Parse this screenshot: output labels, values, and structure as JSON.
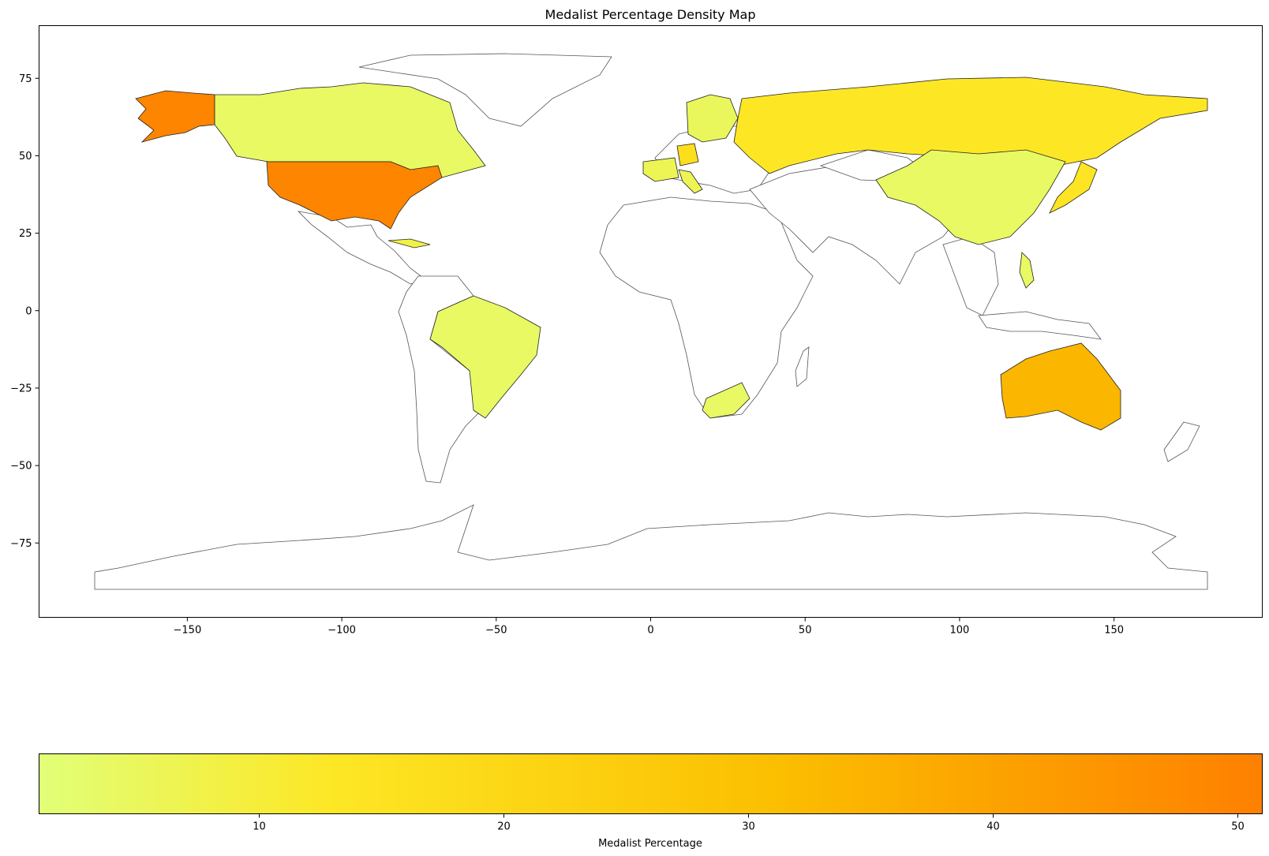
{
  "title": "Medalist Percentage Density Map",
  "colorbar": {
    "label": "Medalist Percentage",
    "range": [
      1,
      51
    ],
    "ticks": [
      10,
      20,
      30,
      40,
      50
    ],
    "tick_labels": [
      "10",
      "20",
      "30",
      "40",
      "50"
    ],
    "colormap": [
      "#e1ff78",
      "#fde725",
      "#fbbf00",
      "#fe8000"
    ]
  },
  "chart_data": {
    "type": "choropleth",
    "title": "Medalist Percentage Density Map",
    "xlim": [
      -198,
      198
    ],
    "ylim": [
      -99,
      92
    ],
    "x_ticks": [
      -150,
      -100,
      -50,
      0,
      50,
      100,
      150
    ],
    "x_tick_labels": [
      "−150",
      "−100",
      "−50",
      "0",
      "50",
      "100",
      "150"
    ],
    "y_ticks": [
      75,
      50,
      25,
      0,
      -25,
      -50,
      -75
    ],
    "y_tick_labels": [
      "75",
      "50",
      "25",
      "0",
      "−25",
      "−50",
      "−75"
    ],
    "no_data_color": "#ffffff",
    "regions": [
      {
        "name": "United States",
        "value": 49.5
      },
      {
        "name": "Alaska",
        "value": 49.5
      },
      {
        "name": "Australia",
        "value": 34
      },
      {
        "name": "Russia",
        "value": 13
      },
      {
        "name": "Germany",
        "value": 17
      },
      {
        "name": "Japan",
        "value": 14
      },
      {
        "name": "Canada",
        "value": 4
      },
      {
        "name": "China",
        "value": 4
      },
      {
        "name": "Brazil",
        "value": 4
      },
      {
        "name": "South Africa",
        "value": 4
      },
      {
        "name": "Sweden",
        "value": 5
      },
      {
        "name": "Philippines",
        "value": 4
      },
      {
        "name": "Cuba",
        "value": 8
      },
      {
        "name": "Italy",
        "value": 6
      },
      {
        "name": "France",
        "value": 6
      }
    ]
  }
}
